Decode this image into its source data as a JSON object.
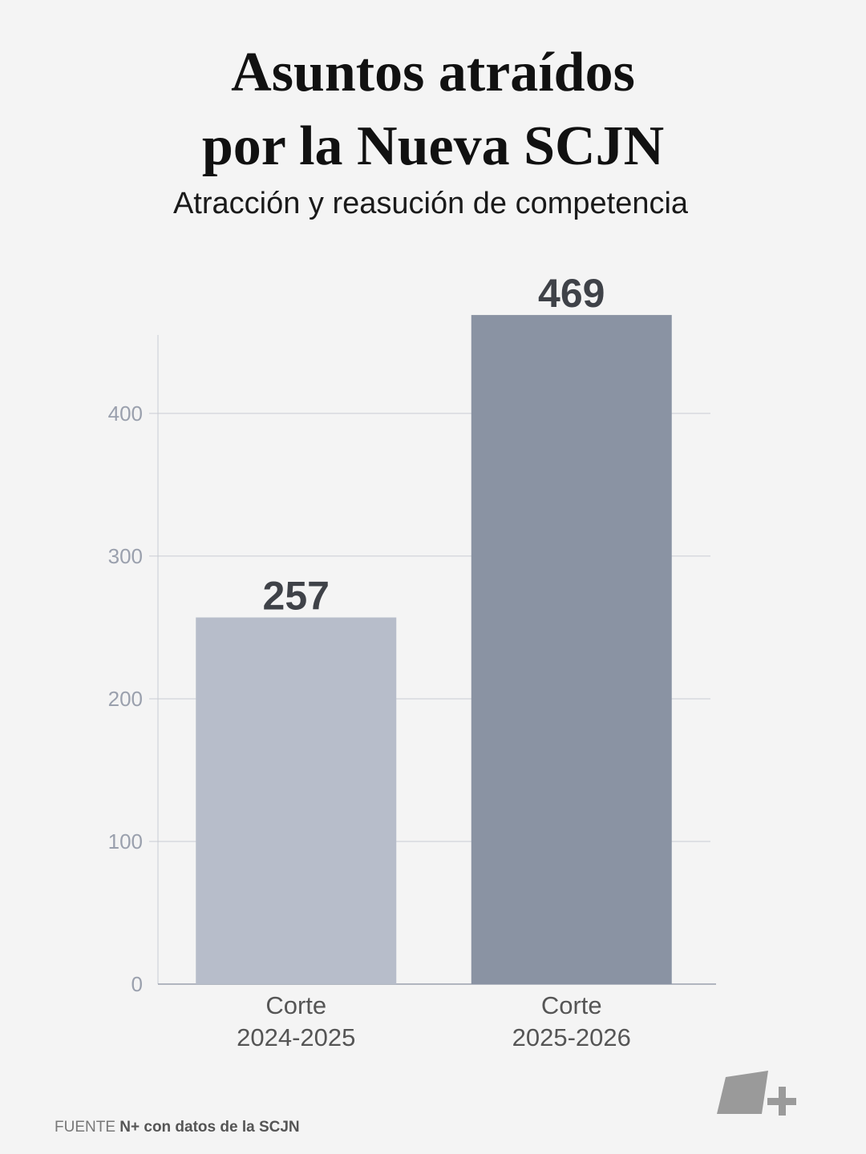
{
  "chart_data": {
    "type": "bar",
    "title": "Asuntos atraídos\npor la Nueva SCJN",
    "subtitle": "Atracción y reasución de competencia",
    "categories": [
      "Corte\n2024-2025",
      "Corte\n2025-2026"
    ],
    "values": [
      257,
      469
    ],
    "colors": [
      "#b7bdca",
      "#8a93a3"
    ],
    "ylim": [
      0,
      455
    ],
    "yticks": [
      0,
      100,
      200,
      300,
      400
    ],
    "grid": true,
    "source": {
      "label": "FUENTE",
      "text": "N+ con datos de la SCJN"
    }
  }
}
